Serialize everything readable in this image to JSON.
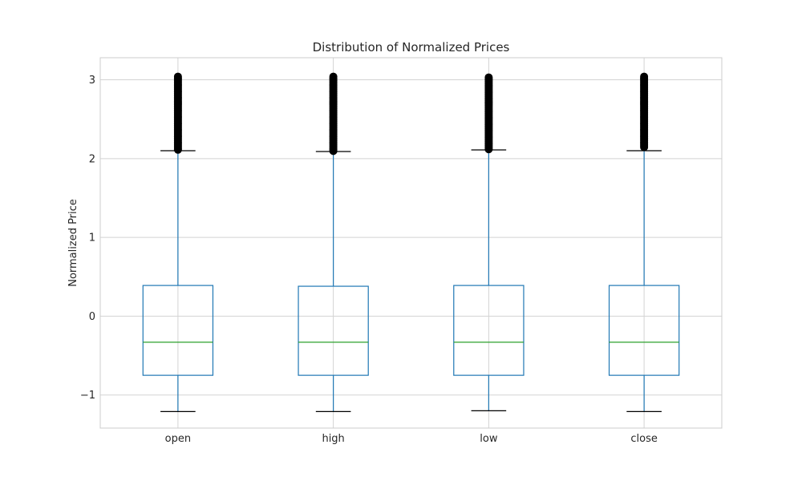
{
  "chart_data": {
    "type": "box",
    "title": "Distribution of Normalized Prices",
    "xlabel": "",
    "ylabel": "Normalized Price",
    "categories": [
      "open",
      "high",
      "low",
      "close"
    ],
    "ylim": [
      -1.42,
      3.28
    ],
    "yticks": [
      3,
      2,
      1,
      0,
      -1
    ],
    "ytick_labels": [
      "3",
      "2",
      "1",
      "0",
      "−1"
    ],
    "grid": true,
    "boxes": [
      {
        "name": "open",
        "whisker_low": -1.21,
        "q1": -0.75,
        "median": -0.33,
        "q3": 0.39,
        "whisker_high": 2.1,
        "outlier_low": 2.1,
        "outlier_high": 3.04
      },
      {
        "name": "high",
        "whisker_low": -1.21,
        "q1": -0.75,
        "median": -0.33,
        "q3": 0.38,
        "whisker_high": 2.09,
        "outlier_low": 2.09,
        "outlier_high": 3.04
      },
      {
        "name": "low",
        "whisker_low": -1.2,
        "q1": -0.75,
        "median": -0.33,
        "q3": 0.39,
        "whisker_high": 2.11,
        "outlier_low": 2.11,
        "outlier_high": 3.03
      },
      {
        "name": "close",
        "whisker_low": -1.21,
        "q1": -0.75,
        "median": -0.33,
        "q3": 0.39,
        "whisker_high": 2.1,
        "outlier_low": 2.14,
        "outlier_high": 3.04
      }
    ],
    "colors": {
      "box": "#1f77b4",
      "median": "#2ca02c",
      "whisker_cap": "#000000",
      "outlier": "#000000",
      "grid": "#d3d3d3",
      "frame": "#cccccc"
    }
  }
}
